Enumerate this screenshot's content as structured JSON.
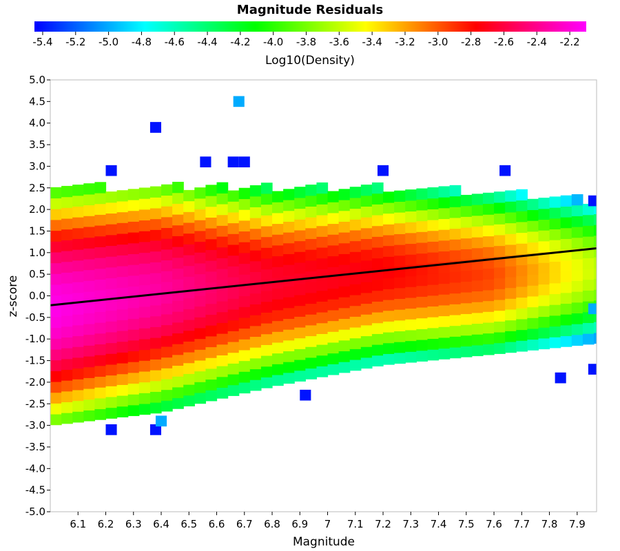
{
  "chart_data": {
    "type": "heatmap",
    "title": "Magnitude Residuals",
    "xlabel": "Magnitude",
    "ylabel": "z-score",
    "colorbar_label": "Log10(Density)",
    "xlim": [
      6.0,
      7.97
    ],
    "ylim": [
      -5.0,
      5.0
    ],
    "x_ticks": [
      "6.1",
      "6.2",
      "6.3",
      "6.4",
      "6.5",
      "6.6",
      "6.7",
      "6.8",
      "6.9",
      "7",
      "7.1",
      "7.2",
      "7.3",
      "7.4",
      "7.5",
      "7.6",
      "7.7",
      "7.8",
      "7.9"
    ],
    "y_ticks": [
      "5.0",
      "4.5",
      "4.0",
      "3.5",
      "3.0",
      "2.5",
      "2.0",
      "1.5",
      "1.0",
      "0.5",
      "0.0",
      "-0.5",
      "-1.0",
      "-1.5",
      "-2.0",
      "-2.5",
      "-3.0",
      "-3.5",
      "-4.0",
      "-4.5",
      "-5.0"
    ],
    "colorbar_ticks": [
      "-5.4",
      "-5.2",
      "-5.0",
      "-4.8",
      "-4.6",
      "-4.4",
      "-4.2",
      "-4.0",
      "-3.8",
      "-3.6",
      "-3.4",
      "-3.2",
      "-3.0",
      "-2.8",
      "-2.6",
      "-2.4",
      "-2.2"
    ],
    "colorbar_range": [
      -5.45,
      -2.1
    ],
    "colormap": [
      "#0000ff",
      "#00ffff",
      "#00ff00",
      "#ffff00",
      "#ff0000",
      "#ff00ff"
    ],
    "bin_width_x": 0.04,
    "bin_width_y": 0.25,
    "trend_line": {
      "x": [
        6.0,
        7.97
      ],
      "y": [
        -0.22,
        1.1
      ],
      "color": "#000000"
    },
    "density_model": {
      "center_y": {
        "x": [
          6.0,
          6.4,
          6.8,
          7.2,
          7.6,
          7.97
        ],
        "y": [
          -0.3,
          0.1,
          0.3,
          0.55,
          0.5,
          0.6
        ]
      },
      "spread": {
        "x": [
          6.0,
          6.4,
          6.8,
          7.2,
          7.6,
          7.97
        ],
        "y": [
          1.15,
          1.1,
          0.95,
          0.85,
          0.82,
          0.75
        ]
      },
      "peak_log_density": {
        "x": [
          6.0,
          6.4,
          6.8,
          7.2,
          7.6,
          7.97
        ],
        "y": [
          -2.15,
          -2.35,
          -2.65,
          -2.75,
          -2.95,
          -3.6
        ]
      },
      "upper_edge": {
        "x": [
          6.0,
          6.4,
          6.8,
          7.2,
          7.6,
          7.97
        ],
        "y": [
          2.4,
          2.4,
          2.4,
          2.4,
          2.3,
          2.1
        ]
      },
      "lower_edge": {
        "x": [
          6.0,
          6.4,
          6.8,
          7.2,
          7.6,
          7.97
        ],
        "y": [
          -3.0,
          -2.7,
          -2.1,
          -1.6,
          -1.35,
          -1.1
        ]
      }
    },
    "outlier_cells": [
      {
        "x": 6.38,
        "y": 3.9,
        "v": -5.4
      },
      {
        "x": 6.68,
        "y": 4.5,
        "v": -5.0
      },
      {
        "x": 6.22,
        "y": 2.9,
        "v": -5.4
      },
      {
        "x": 6.56,
        "y": 3.1,
        "v": -5.4
      },
      {
        "x": 6.66,
        "y": 3.1,
        "v": -5.4
      },
      {
        "x": 6.7,
        "y": 3.1,
        "v": -5.4
      },
      {
        "x": 7.2,
        "y": 2.9,
        "v": -5.4
      },
      {
        "x": 7.64,
        "y": 2.9,
        "v": -5.4
      },
      {
        "x": 6.22,
        "y": -3.1,
        "v": -5.4
      },
      {
        "x": 6.38,
        "y": -3.1,
        "v": -5.4
      },
      {
        "x": 6.4,
        "y": -2.9,
        "v": -5.0
      },
      {
        "x": 6.92,
        "y": -2.3,
        "v": -5.4
      },
      {
        "x": 7.84,
        "y": -1.9,
        "v": -5.4
      },
      {
        "x": 7.96,
        "y": -1.7,
        "v": -5.4
      },
      {
        "x": 7.96,
        "y": 2.2,
        "v": -5.4
      },
      {
        "x": 7.96,
        "y": -0.3,
        "v": -5.0
      }
    ]
  }
}
